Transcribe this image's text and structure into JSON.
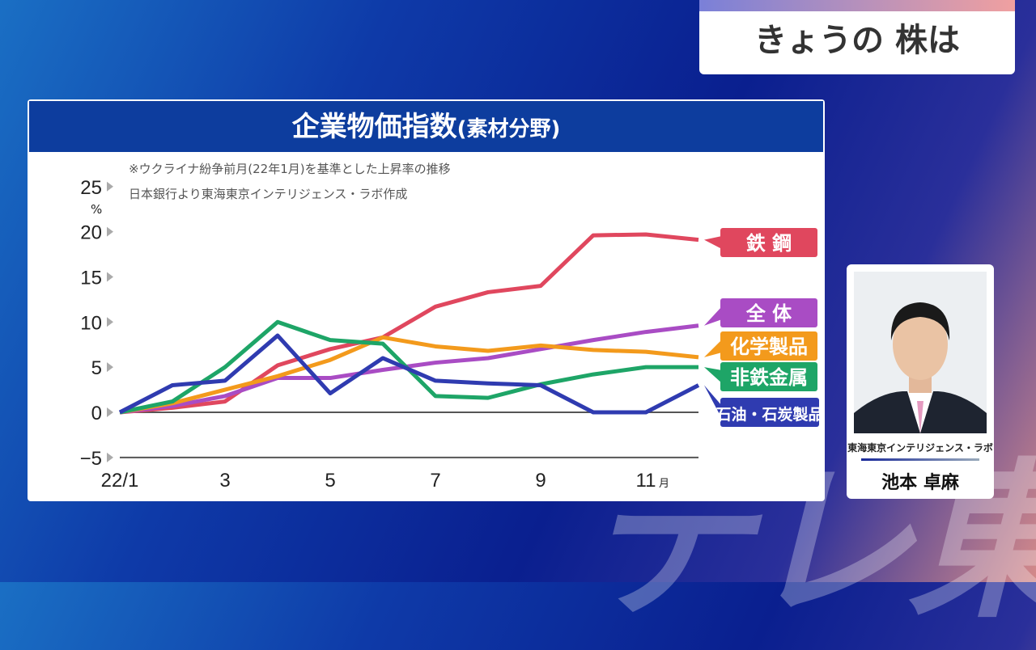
{
  "banner": {
    "title": "きょうの 株は"
  },
  "chart_data": {
    "type": "line",
    "title": "企業物価指数",
    "subtitle": "(素材分野)",
    "notes": [
      "※ウクライナ紛争前月(22年1月)を基準とした上昇率の推移",
      "日本銀行より東海東京インテリジェンス・ラボ作成"
    ],
    "ylabel": "%",
    "xlabel": "月",
    "ylim": [
      -5,
      25
    ],
    "yticks": [
      "−5",
      "0",
      "5",
      "10",
      "15",
      "20",
      "25"
    ],
    "ytick_values": [
      -5,
      0,
      5,
      10,
      15,
      20,
      25
    ],
    "x": [
      1,
      2,
      3,
      4,
      5,
      6,
      7,
      8,
      9,
      10,
      11,
      12
    ],
    "xticks": [
      {
        "value": 1,
        "label": "22/1"
      },
      {
        "value": 3,
        "label": "3"
      },
      {
        "value": 5,
        "label": "5"
      },
      {
        "value": 7,
        "label": "7"
      },
      {
        "value": 9,
        "label": "9"
      },
      {
        "value": 11,
        "label": "11"
      }
    ],
    "series": [
      {
        "name": "鉄 鋼",
        "color": "#e0475e",
        "values": [
          0,
          0.5,
          1.2,
          5.2,
          7,
          8.3,
          11.7,
          13.3,
          14,
          19.6,
          19.7,
          19.1
        ]
      },
      {
        "name": "全 体",
        "color": "#a94cc4",
        "values": [
          0,
          0.7,
          1.8,
          3.8,
          3.8,
          4.7,
          5.5,
          6,
          7,
          8,
          8.9,
          9.6
        ]
      },
      {
        "name": "化学製品",
        "color": "#f39a1c",
        "values": [
          0,
          1,
          2.5,
          4,
          5.8,
          8.3,
          7.3,
          6.8,
          7.4,
          6.9,
          6.7,
          6.1
        ]
      },
      {
        "name": "非鉄金属",
        "color": "#1ea567",
        "values": [
          0,
          1.2,
          5,
          10,
          8,
          7.6,
          1.8,
          1.6,
          3.1,
          4.2,
          5,
          5
        ]
      },
      {
        "name": "石油・石炭製品",
        "color": "#2f3bb0",
        "values": [
          0,
          3,
          3.5,
          8.5,
          2.1,
          6,
          3.5,
          3.2,
          3,
          0,
          0,
          3
        ]
      }
    ],
    "grid": false,
    "legend": "right"
  },
  "presenter": {
    "org": "東海東京インテリジェンス・ラボ",
    "name": "池本 卓麻"
  },
  "watermark": "テレ東"
}
